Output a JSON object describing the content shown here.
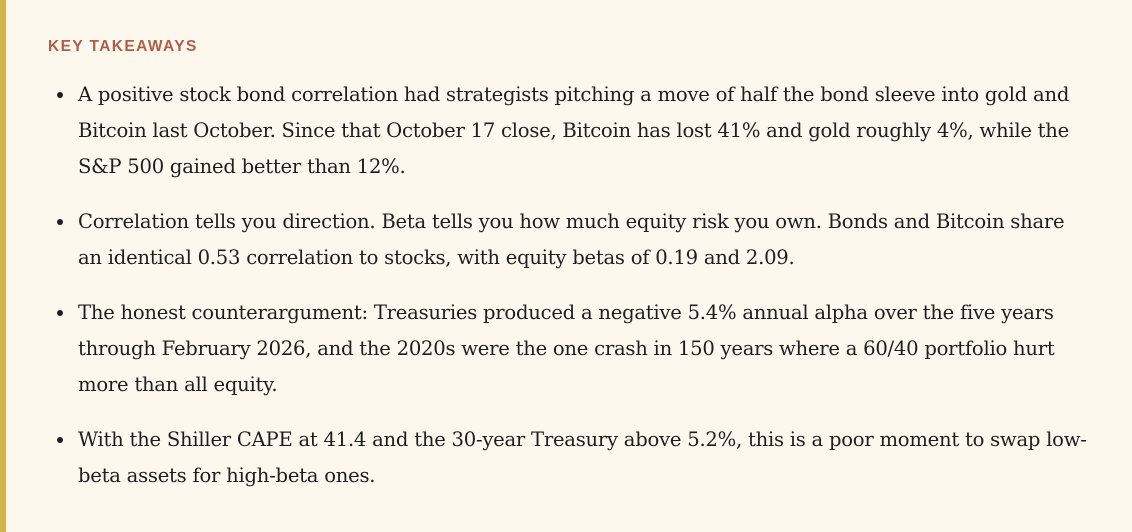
{
  "takeaways": {
    "heading": "KEY TAKEAWAYS",
    "items": [
      "A positive stock bond correlation had strategists pitching a move of half the bond sleeve into gold and Bitcoin last October. Since that October 17 close, Bitcoin has lost 41% and gold roughly 4%, while the S&P 500 gained better than 12%.",
      "Correlation tells you direction. Beta tells you how much equity risk you own. Bonds and Bitcoin share an identical 0.53 correlation to stocks, with equity betas of 0.19 and 2.09.",
      "The honest counterargument: Treasuries produced a negative 5.4% annual alpha over the five years through February 2026, and the 2020s were the one crash in 150 years where a 60/40 portfolio hurt more than all equity.",
      "With the Shiller CAPE at 41.4 and the 30-year Treasury above 5.2%, this is a poor moment to swap low-beta assets for high-beta ones."
    ]
  },
  "colors": {
    "background": "#fdf8ee",
    "accent_border": "#d4b24c",
    "heading": "#b05c49",
    "text": "#1e1e1e"
  }
}
